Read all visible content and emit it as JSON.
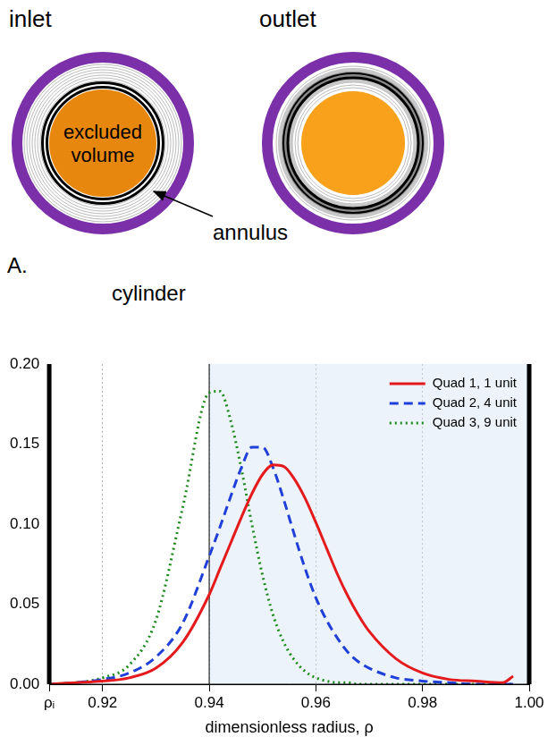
{
  "diagram": {
    "panel_label": "A.",
    "labels": {
      "inlet": "inlet",
      "outlet": "outlet",
      "excluded_volume": "excluded volume",
      "annulus": "annulus",
      "cylinder": "cylinder"
    }
  },
  "chart_data": {
    "type": "line",
    "x_label": "dimensionless radius, ρ",
    "x": [
      0.91,
      0.915,
      0.92,
      0.925,
      0.93,
      0.935,
      0.94,
      0.942,
      0.944,
      0.946,
      0.948,
      0.95,
      0.952,
      0.954,
      0.956,
      0.958,
      0.96,
      0.962,
      0.964,
      0.966,
      0.968,
      0.97,
      0.975,
      0.98,
      0.985,
      0.99,
      0.995,
      0.997
    ],
    "series": [
      {
        "name": "Quad 1, 1 unit",
        "color": "#e41a1c",
        "line_style": "solid",
        "values": [
          0.0,
          0.001,
          0.002,
          0.004,
          0.01,
          0.026,
          0.056,
          0.072,
          0.088,
          0.104,
          0.119,
          0.131,
          0.137,
          0.136,
          0.128,
          0.116,
          0.101,
          0.085,
          0.069,
          0.055,
          0.043,
          0.033,
          0.016,
          0.007,
          0.003,
          0.002,
          0.001,
          0.005
        ]
      },
      {
        "name": "Quad 2, 4 unit",
        "color": "#1f3fd8",
        "line_style": "dashed",
        "values": [
          0.0,
          0.001,
          0.003,
          0.007,
          0.017,
          0.038,
          0.08,
          0.098,
          0.117,
          0.135,
          0.148,
          0.148,
          0.135,
          0.115,
          0.093,
          0.072,
          0.054,
          0.04,
          0.029,
          0.02,
          0.014,
          0.01,
          0.004,
          0.002,
          0.001,
          0.0,
          0.0,
          0.0
        ]
      },
      {
        "name": "Quad 3, 9 unit",
        "color": "#1a8a1a",
        "line_style": "dotted",
        "values": [
          0.0,
          0.001,
          0.004,
          0.012,
          0.04,
          0.11,
          0.182,
          0.183,
          0.165,
          0.135,
          0.1,
          0.068,
          0.043,
          0.026,
          0.015,
          0.008,
          0.004,
          0.002,
          0.001,
          0.001,
          0.0,
          0.0,
          0.0,
          0.0,
          0.0,
          0.0,
          0.0,
          0.0
        ]
      }
    ],
    "xlim": [
      0.91,
      1.0
    ],
    "xticks": [
      {
        "value": 0.91,
        "label": "ρᵢ"
      },
      0.92,
      0.94,
      0.96,
      0.98,
      {
        "value": 1.0,
        "label": "1.00"
      }
    ],
    "ylim": [
      0,
      0.2
    ],
    "yticks": [
      {
        "value": 0,
        "label": "0.00"
      },
      0.05,
      {
        "value": 0.1,
        "label": "0.10"
      },
      0.15,
      {
        "value": 0.2,
        "label": "0.20"
      }
    ],
    "shaded_region": [
      0.94,
      1.0
    ],
    "grid": true,
    "legend": "upper right"
  }
}
